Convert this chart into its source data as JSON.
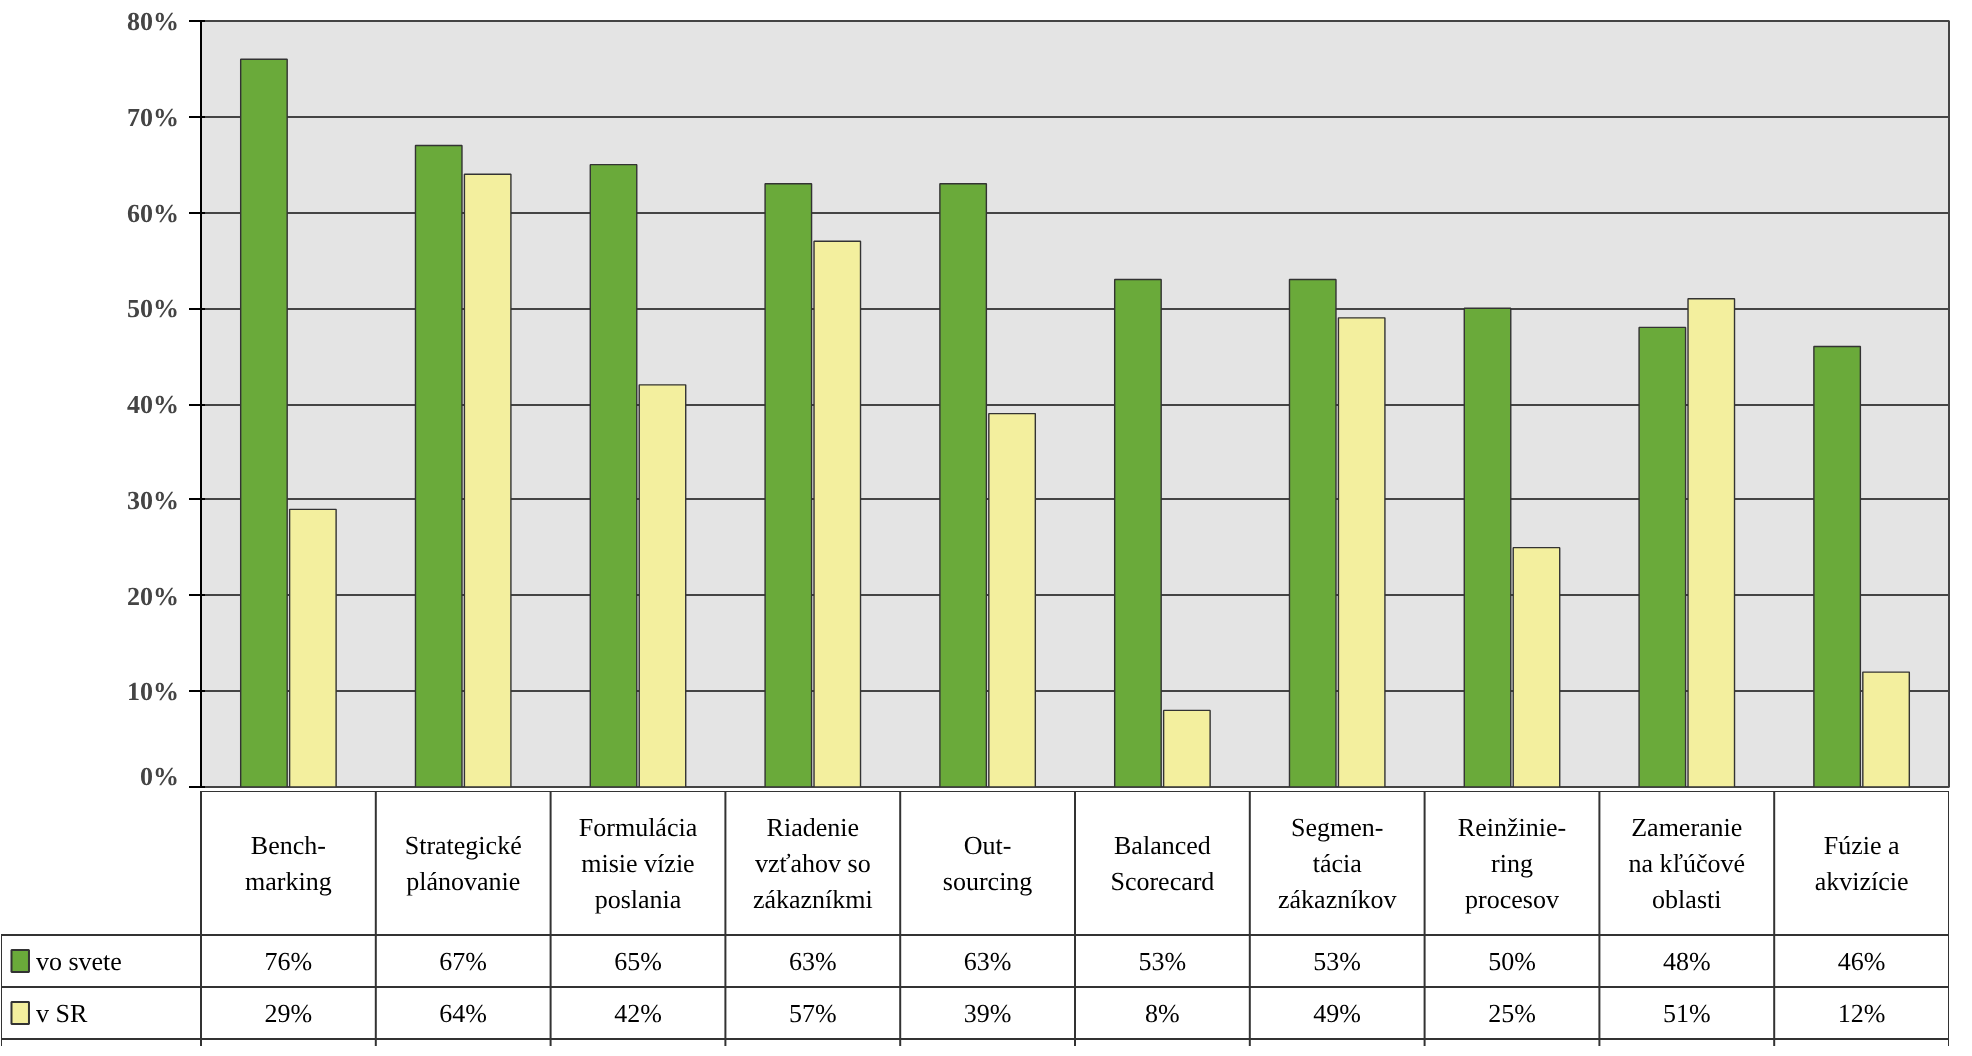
{
  "chart_data": {
    "type": "bar",
    "categories": [
      "Bench-\nmarking",
      "Strategické\nplánovanie",
      "Formulácia\nmisie vízie\nposlania",
      "Riadenie\nvzťahov so\nzákazníkmi",
      "Out-\nsourcing",
      "Balanced\nScorecard",
      "Segmen-\ntácia\nzákazníkov",
      "Reinžinie-\nring\nprocesov",
      "Zameranie\nna kľúčové\noblasti",
      "Fúzie a\nakvizície"
    ],
    "series": [
      {
        "name": "vo svete",
        "color": "#6aaa3a",
        "values": [
          76,
          67,
          65,
          63,
          63,
          53,
          53,
          50,
          48,
          46
        ],
        "value_labels": [
          "76%",
          "67%",
          "65%",
          "63%",
          "63%",
          "53%",
          "53%",
          "50%",
          "48%",
          "46%"
        ]
      },
      {
        "name": "v SR",
        "color": "#f3ef9e",
        "values": [
          29,
          64,
          42,
          57,
          39,
          8,
          49,
          25,
          51,
          12
        ],
        "value_labels": [
          "29%",
          "64%",
          "42%",
          "57%",
          "39%",
          "8%",
          "49%",
          "25%",
          "51%",
          "12%"
        ]
      }
    ],
    "ylim": [
      0,
      80
    ],
    "yticks": [
      {
        "value": 0,
        "label": "0%"
      },
      {
        "value": 10,
        "label": "10%"
      },
      {
        "value": 20,
        "label": "20%"
      },
      {
        "value": 30,
        "label": "30%"
      },
      {
        "value": 40,
        "label": "40%"
      },
      {
        "value": 50,
        "label": "50%"
      },
      {
        "value": 60,
        "label": "60%"
      },
      {
        "value": 70,
        "label": "70%"
      },
      {
        "value": 80,
        "label": "80%"
      }
    ],
    "grid": "y",
    "legend": "bottom left"
  }
}
